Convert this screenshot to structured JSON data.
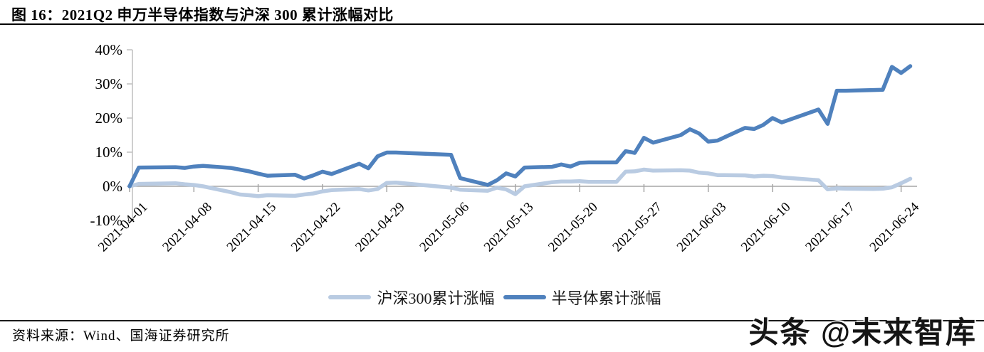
{
  "figure": {
    "title": "图 16：2021Q2 申万半导体指数与沪深 300 累计涨幅对比",
    "source_label": "资料来源：Wind、国海证券研究所",
    "watermark": "头条 @未来智库"
  },
  "colors": {
    "hs300_line": "#b9cbe2",
    "semiconductor_line": "#4f81bd",
    "axis_line": "#bfbfbf",
    "zero_line": "#a6a6a6",
    "text": "#000000"
  },
  "chart_data": {
    "type": "line",
    "title": "2021Q2 申万半导体指数与沪深300累计涨幅对比",
    "grid": "off",
    "legend_position": "bottom-center",
    "y_axis": {
      "min": -10,
      "max": 40,
      "ticks": [
        {
          "label": "40%",
          "value": 40
        },
        {
          "label": "30%",
          "value": 30
        },
        {
          "label": "20%",
          "value": 20
        },
        {
          "label": "10%",
          "value": 10
        },
        {
          "label": "0%",
          "value": 0
        },
        {
          "label": "-10%",
          "value": -10
        }
      ]
    },
    "x_axis": {
      "tick_labels": [
        "2021-04-01",
        "2021-04-08",
        "2021-04-15",
        "2021-04-22",
        "2021-04-29",
        "2021-05-06",
        "2021-05-13",
        "2021-05-20",
        "2021-05-27",
        "2021-06-03",
        "2021-06-10",
        "2021-06-17",
        "2021-06-24"
      ]
    },
    "legend": [
      {
        "name": "沪深300累计涨幅",
        "color": "#b9cbe2"
      },
      {
        "name": "半导体累计涨幅",
        "color": "#4f81bd"
      }
    ],
    "series": [
      {
        "name": "沪深300累计涨幅",
        "color": "#b9cbe2",
        "points": [
          [
            "2021-04-01",
            0.0
          ],
          [
            "2021-04-02",
            0.7
          ],
          [
            "2021-04-06",
            0.9
          ],
          [
            "2021-04-07",
            0.6
          ],
          [
            "2021-04-08",
            0.4
          ],
          [
            "2021-04-09",
            0.0
          ],
          [
            "2021-04-12",
            -1.7
          ],
          [
            "2021-04-13",
            -2.4
          ],
          [
            "2021-04-14",
            -2.6
          ],
          [
            "2021-04-15",
            -2.9
          ],
          [
            "2021-04-16",
            -2.6
          ],
          [
            "2021-04-19",
            -2.8
          ],
          [
            "2021-04-20",
            -2.4
          ],
          [
            "2021-04-21",
            -2.1
          ],
          [
            "2021-04-22",
            -1.5
          ],
          [
            "2021-04-23",
            -1.1
          ],
          [
            "2021-04-26",
            -0.8
          ],
          [
            "2021-04-27",
            -1.2
          ],
          [
            "2021-04-28",
            -0.8
          ],
          [
            "2021-04-29",
            1.0
          ],
          [
            "2021-04-30",
            1.1
          ],
          [
            "2021-05-06",
            -0.4
          ],
          [
            "2021-05-07",
            -1.0
          ],
          [
            "2021-05-10",
            -1.3
          ],
          [
            "2021-05-11",
            -0.4
          ],
          [
            "2021-05-12",
            -0.9
          ],
          [
            "2021-05-13",
            -2.3
          ],
          [
            "2021-05-14",
            0.0
          ],
          [
            "2021-05-17",
            1.2
          ],
          [
            "2021-05-18",
            1.4
          ],
          [
            "2021-05-19",
            1.4
          ],
          [
            "2021-05-20",
            1.5
          ],
          [
            "2021-05-21",
            1.3
          ],
          [
            "2021-05-24",
            1.3
          ],
          [
            "2021-05-25",
            4.3
          ],
          [
            "2021-05-26",
            4.4
          ],
          [
            "2021-05-27",
            4.9
          ],
          [
            "2021-05-28",
            4.6
          ],
          [
            "2021-05-31",
            4.7
          ],
          [
            "2021-06-01",
            4.6
          ],
          [
            "2021-06-02",
            4.0
          ],
          [
            "2021-06-03",
            3.8
          ],
          [
            "2021-06-04",
            3.3
          ],
          [
            "2021-06-07",
            3.2
          ],
          [
            "2021-06-08",
            2.9
          ],
          [
            "2021-06-09",
            3.1
          ],
          [
            "2021-06-10",
            3.0
          ],
          [
            "2021-06-11",
            2.6
          ],
          [
            "2021-06-15",
            1.8
          ],
          [
            "2021-06-16",
            -0.9
          ],
          [
            "2021-06-17",
            -0.6
          ],
          [
            "2021-06-18",
            -0.7
          ],
          [
            "2021-06-21",
            -0.8
          ],
          [
            "2021-06-22",
            -0.7
          ],
          [
            "2021-06-23",
            -0.3
          ],
          [
            "2021-06-24",
            0.9
          ],
          [
            "2021-06-25",
            2.2
          ]
        ]
      },
      {
        "name": "半导体累计涨幅",
        "color": "#4f81bd",
        "points": [
          [
            "2021-04-01",
            0.0
          ],
          [
            "2021-04-02",
            5.5
          ],
          [
            "2021-04-06",
            5.6
          ],
          [
            "2021-04-07",
            5.4
          ],
          [
            "2021-04-08",
            5.8
          ],
          [
            "2021-04-09",
            6.0
          ],
          [
            "2021-04-12",
            5.4
          ],
          [
            "2021-04-13",
            4.9
          ],
          [
            "2021-04-14",
            4.4
          ],
          [
            "2021-04-15",
            3.7
          ],
          [
            "2021-04-16",
            3.1
          ],
          [
            "2021-04-19",
            3.4
          ],
          [
            "2021-04-20",
            2.3
          ],
          [
            "2021-04-21",
            3.2
          ],
          [
            "2021-04-22",
            4.3
          ],
          [
            "2021-04-23",
            3.6
          ],
          [
            "2021-04-26",
            6.6
          ],
          [
            "2021-04-27",
            5.3
          ],
          [
            "2021-04-28",
            8.8
          ],
          [
            "2021-04-29",
            9.9
          ],
          [
            "2021-04-30",
            9.9
          ],
          [
            "2021-05-06",
            9.2
          ],
          [
            "2021-05-07",
            2.4
          ],
          [
            "2021-05-10",
            0.4
          ],
          [
            "2021-05-11",
            1.8
          ],
          [
            "2021-05-12",
            3.8
          ],
          [
            "2021-05-13",
            2.9
          ],
          [
            "2021-05-14",
            5.5
          ],
          [
            "2021-05-17",
            5.7
          ],
          [
            "2021-05-18",
            6.4
          ],
          [
            "2021-05-19",
            5.8
          ],
          [
            "2021-05-20",
            6.9
          ],
          [
            "2021-05-21",
            7.0
          ],
          [
            "2021-05-24",
            7.0
          ],
          [
            "2021-05-25",
            10.3
          ],
          [
            "2021-05-26",
            9.8
          ],
          [
            "2021-05-27",
            14.2
          ],
          [
            "2021-05-28",
            12.8
          ],
          [
            "2021-05-31",
            15.0
          ],
          [
            "2021-06-01",
            16.7
          ],
          [
            "2021-06-02",
            15.5
          ],
          [
            "2021-06-03",
            13.1
          ],
          [
            "2021-06-04",
            13.4
          ],
          [
            "2021-06-07",
            17.1
          ],
          [
            "2021-06-08",
            16.8
          ],
          [
            "2021-06-09",
            18.0
          ],
          [
            "2021-06-10",
            20.0
          ],
          [
            "2021-06-11",
            18.7
          ],
          [
            "2021-06-15",
            22.5
          ],
          [
            "2021-06-16",
            18.3
          ],
          [
            "2021-06-17",
            28.0
          ],
          [
            "2021-06-18",
            28.0
          ],
          [
            "2021-06-21",
            28.2
          ],
          [
            "2021-06-22",
            28.3
          ],
          [
            "2021-06-23",
            35.0
          ],
          [
            "2021-06-24",
            33.2
          ],
          [
            "2021-06-25",
            35.2
          ]
        ]
      }
    ]
  }
}
